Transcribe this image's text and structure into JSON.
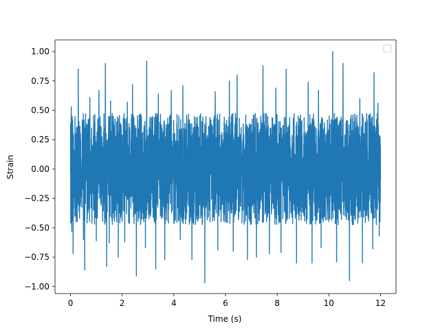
{
  "chart_data": {
    "type": "line",
    "title": "",
    "xlabel": "Time (s)",
    "ylabel": "Strain",
    "xlim": [
      -0.6,
      12.6
    ],
    "ylim": [
      -1.06,
      1.1
    ],
    "x_ticks": [
      0,
      2,
      4,
      6,
      8,
      10,
      12
    ],
    "x_tick_labels": [
      "0",
      "2",
      "4",
      "6",
      "8",
      "10",
      "12"
    ],
    "y_ticks": [
      -1.0,
      -0.75,
      -0.5,
      -0.25,
      0.0,
      0.25,
      0.5,
      0.75,
      1.0
    ],
    "y_tick_labels": [
      "−1.00",
      "−0.75",
      "−0.50",
      "−0.25",
      "0.00",
      "0.25",
      "0.50",
      "0.75",
      "1.00"
    ],
    "grid": false,
    "legend": {
      "placement": "top-right",
      "entries": []
    },
    "series": [
      {
        "color": "#1f77b4",
        "x_range": [
          0,
          12
        ],
        "baseline_envelope": [
          -0.5,
          0.5
        ],
        "peaks": [
          {
            "x": 0.03,
            "y": 0.53
          },
          {
            "x": 0.3,
            "y": 0.85
          },
          {
            "x": 0.55,
            "y": 0.71
          },
          {
            "x": 0.75,
            "y": 0.61
          },
          {
            "x": 1.1,
            "y": 0.67
          },
          {
            "x": 1.35,
            "y": 0.9
          },
          {
            "x": 1.55,
            "y": 0.58
          },
          {
            "x": 2.2,
            "y": 0.57
          },
          {
            "x": 2.4,
            "y": 0.72
          },
          {
            "x": 2.95,
            "y": 0.92
          },
          {
            "x": 3.4,
            "y": 0.64
          },
          {
            "x": 3.9,
            "y": 0.67
          },
          {
            "x": 4.35,
            "y": 0.71
          },
          {
            "x": 5.2,
            "y": 0.87
          },
          {
            "x": 5.6,
            "y": 0.66
          },
          {
            "x": 6.15,
            "y": 0.75
          },
          {
            "x": 6.45,
            "y": 0.8
          },
          {
            "x": 6.85,
            "y": 0.82
          },
          {
            "x": 7.2,
            "y": 0.69
          },
          {
            "x": 7.45,
            "y": 0.88
          },
          {
            "x": 7.95,
            "y": 0.69
          },
          {
            "x": 8.35,
            "y": 0.85
          },
          {
            "x": 8.75,
            "y": 0.87
          },
          {
            "x": 9.2,
            "y": 0.74
          },
          {
            "x": 9.6,
            "y": 0.67
          },
          {
            "x": 10.15,
            "y": 1.0
          },
          {
            "x": 10.55,
            "y": 0.9
          },
          {
            "x": 11.2,
            "y": 0.6
          },
          {
            "x": 11.75,
            "y": 0.82
          },
          {
            "x": 11.9,
            "y": 0.56
          }
        ],
        "troughs": [
          {
            "x": 0.05,
            "y": -0.53
          },
          {
            "x": 0.1,
            "y": -0.72
          },
          {
            "x": 0.5,
            "y": -0.6
          },
          {
            "x": 0.55,
            "y": -0.86
          },
          {
            "x": 1.0,
            "y": -0.61
          },
          {
            "x": 1.4,
            "y": -0.83
          },
          {
            "x": 1.5,
            "y": -0.63
          },
          {
            "x": 1.85,
            "y": -0.75
          },
          {
            "x": 2.1,
            "y": -0.62
          },
          {
            "x": 2.55,
            "y": -0.91
          },
          {
            "x": 2.9,
            "y": -0.67
          },
          {
            "x": 3.3,
            "y": -0.85
          },
          {
            "x": 3.65,
            "y": -0.77
          },
          {
            "x": 4.25,
            "y": -0.6
          },
          {
            "x": 4.7,
            "y": -0.77
          },
          {
            "x": 5.2,
            "y": -0.97
          },
          {
            "x": 5.7,
            "y": -0.69
          },
          {
            "x": 6.3,
            "y": -0.7
          },
          {
            "x": 6.85,
            "y": -0.77
          },
          {
            "x": 7.2,
            "y": -0.75
          },
          {
            "x": 7.7,
            "y": -0.72
          },
          {
            "x": 8.15,
            "y": -0.71
          },
          {
            "x": 8.75,
            "y": -0.8
          },
          {
            "x": 9.35,
            "y": -0.8
          },
          {
            "x": 9.7,
            "y": -0.67
          },
          {
            "x": 10.3,
            "y": -0.79
          },
          {
            "x": 10.8,
            "y": -0.95
          },
          {
            "x": 11.3,
            "y": -0.8
          },
          {
            "x": 11.7,
            "y": -0.68
          },
          {
            "x": 11.95,
            "y": -0.57
          }
        ]
      }
    ]
  }
}
